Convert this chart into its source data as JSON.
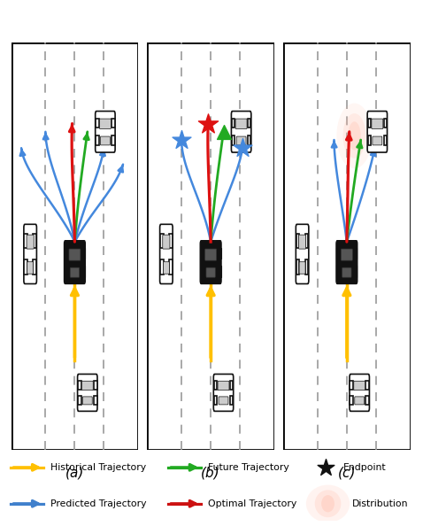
{
  "fig_width": 5.04,
  "fig_height": 5.94,
  "dpi": 100,
  "bg_color": "#ffffff",
  "road_bg": "#ffffff",
  "road_border": "#111111",
  "dashed_color": "#999999",
  "panel_labels": [
    "(a)",
    "(b)",
    "(c)"
  ],
  "legend_rows": [
    [
      {
        "label": "Historical Trajectory",
        "color": "#FFC000",
        "type": "arrow"
      },
      {
        "label": "Future Trajectory",
        "color": "#22AA22",
        "type": "arrow"
      },
      {
        "label": "Endpoint",
        "color": "#111111",
        "type": "star"
      }
    ],
    [
      {
        "label": "Predicted Trajectory",
        "color": "#4080CC",
        "type": "arrow"
      },
      {
        "label": "Optimal Trajectory",
        "color": "#CC1111",
        "type": "arrow"
      },
      {
        "label": "Distribution",
        "color": "#FFB5A0",
        "type": "blob"
      }
    ]
  ],
  "colors": {
    "yellow": "#FFC000",
    "blue": "#4488DD",
    "red": "#DD1111",
    "green": "#22AA22",
    "black": "#111111",
    "outline_car": "#444444",
    "road_white": "#ffffff"
  }
}
